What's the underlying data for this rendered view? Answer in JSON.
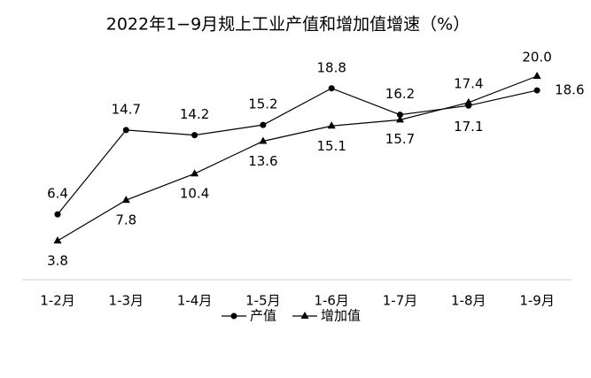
{
  "chart_data": {
    "type": "line",
    "title": "2022年1−9月规上工业产值和增加值增速（%）",
    "categories": [
      "1-2月",
      "1-3月",
      "1-4月",
      "1-5月",
      "1-6月",
      "1-7月",
      "1-8月",
      "1-9月"
    ],
    "series": [
      {
        "name": "产值",
        "color": "#000000",
        "marker": "circle",
        "values": [
          6.4,
          14.7,
          14.2,
          15.2,
          18.8,
          16.2,
          17.1,
          18.6
        ],
        "value_labels": [
          "6.4",
          "14.7",
          "14.2",
          "15.2",
          "18.8",
          "16.2",
          "17.1",
          "18.6"
        ]
      },
      {
        "name": "增加值",
        "color": "#000000",
        "marker": "triangle",
        "values": [
          3.8,
          7.8,
          10.4,
          13.6,
          15.1,
          15.7,
          17.4,
          20.0
        ],
        "value_labels": [
          "3.8",
          "7.8",
          "10.4",
          "13.6",
          "15.1",
          "15.7",
          "17.4",
          "20.0"
        ]
      }
    ]
  }
}
